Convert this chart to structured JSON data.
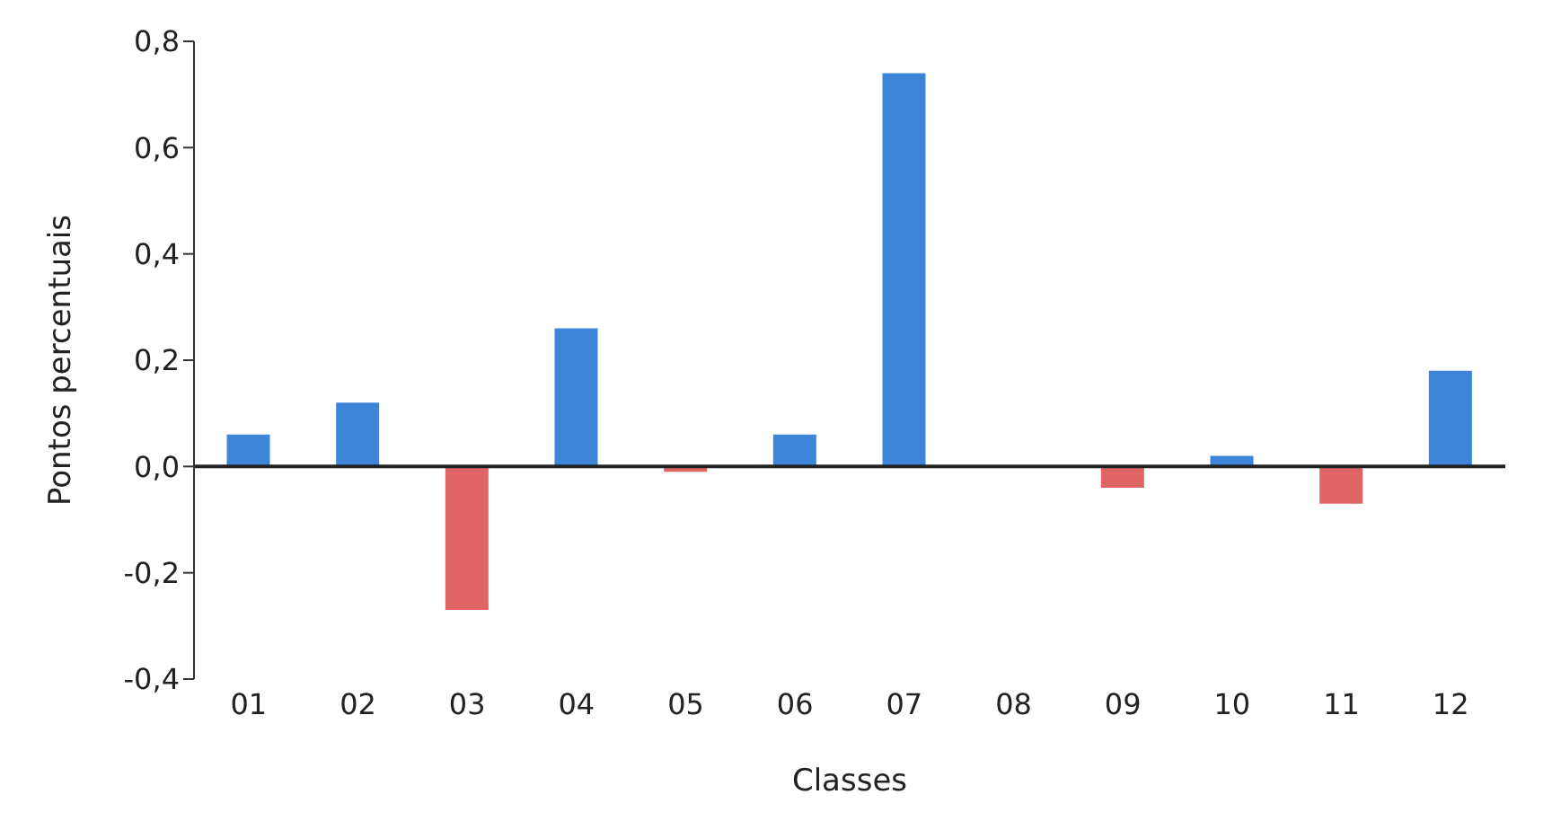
{
  "chart_data": {
    "type": "bar",
    "xlabel": "Classes",
    "ylabel": "Pontos percentuais",
    "categories": [
      "01",
      "02",
      "03",
      "04",
      "05",
      "06",
      "07",
      "08",
      "09",
      "10",
      "11",
      "12"
    ],
    "values": [
      0.06,
      0.12,
      -0.27,
      0.26,
      -0.01,
      0.06,
      0.74,
      0,
      -0.04,
      0.02,
      -0.07,
      0.18
    ],
    "colors": [
      "#3d85d8",
      "#3d85d8",
      "#e06464",
      "#3d85d8",
      "#e06464",
      "#3d85d8",
      "#3d85d8",
      "#3d85d8",
      "#e06464",
      "#3d85d8",
      "#e06464",
      "#3d85d8"
    ],
    "ylim": [
      -0.4,
      0.8
    ],
    "yticks": [
      {
        "value": -0.4,
        "label": "-0,4"
      },
      {
        "value": -0.2,
        "label": "-0,2"
      },
      {
        "value": 0,
        "label": "0,0"
      },
      {
        "value": 0.2,
        "label": "0,2"
      },
      {
        "value": 0.4,
        "label": "0,4"
      },
      {
        "value": 0.6,
        "label": "0,6"
      },
      {
        "value": 0.8,
        "label": "0,8"
      }
    ],
    "legend": false
  }
}
